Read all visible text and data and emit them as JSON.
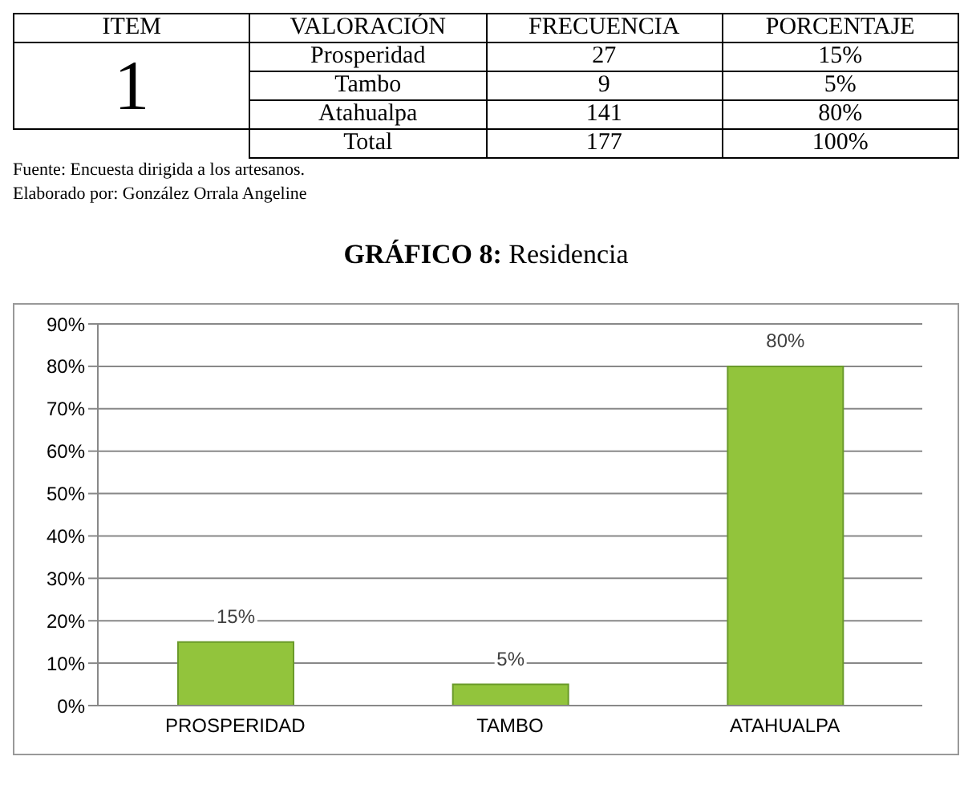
{
  "chart_data": [
    {
      "type": "other",
      "annotations": [
        "ITEM",
        "VALORACIÓN",
        "FRECUENCIA",
        "PORCENTAJE",
        "1",
        "Prosperidad",
        "27",
        "15%",
        "Tambo",
        "9",
        "5%",
        "Atahualpa",
        "141",
        "80%",
        "Total",
        "177",
        "100%",
        "Fuente: Encuesta dirigida a los artesanos.",
        "Elaborado por: González Orrala Angeline"
      ]
    },
    {
      "type": "bar",
      "title": "GRÁFICO 8: Residencia",
      "categories": [
        "PROSPERIDAD",
        "TAMBO",
        "ATAHUALPA"
      ],
      "values": [
        15,
        5,
        80
      ],
      "value_labels": [
        "15%",
        "5%",
        "80%"
      ],
      "color": "#92c43c",
      "ylim": [
        0,
        90
      ],
      "yticks": [
        {
          "value": 0,
          "label": "0%"
        },
        {
          "value": 10,
          "label": "10%"
        },
        {
          "value": 20,
          "label": "20%"
        },
        {
          "value": 30,
          "label": "30%"
        },
        {
          "value": 40,
          "label": "40%"
        },
        {
          "value": 50,
          "label": "50%"
        },
        {
          "value": 60,
          "label": "60%"
        },
        {
          "value": 70,
          "label": "70%"
        },
        {
          "value": 80,
          "label": "80%"
        },
        {
          "value": 90,
          "label": "90%"
        }
      ],
      "grid": "y"
    }
  ]
}
